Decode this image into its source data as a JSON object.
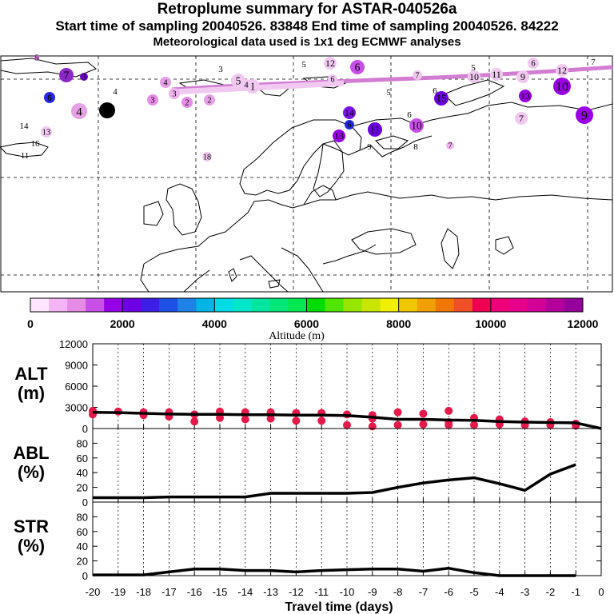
{
  "header": {
    "title": "Retroplume summary for ASTAR-040526a",
    "sampling_line": "Start time of sampling 20040526. 83848     End time of sampling 20040526. 84222",
    "met_line": "Meteorological data used is 1x1 deg ECMWF analyses"
  },
  "colorbar": {
    "label": "Altitude (m)",
    "ticks": [
      "0",
      "2000",
      "4000",
      "6000",
      "8000",
      "10000",
      "12000"
    ],
    "colors": [
      "#ffe6ff",
      "#f5b4f5",
      "#e68ce6",
      "#c850e6",
      "#9600e6",
      "#6e00e6",
      "#3c1ee6",
      "#1e50e6",
      "#1e82e6",
      "#00b4e6",
      "#00dce6",
      "#00e6c8",
      "#00e6a0",
      "#00e678",
      "#00e650",
      "#00dc00",
      "#50e600",
      "#96e600",
      "#c8e600",
      "#f0f000",
      "#f0c800",
      "#f0a000",
      "#f07800",
      "#f05028",
      "#f00050",
      "#f00078",
      "#e6008c",
      "#d20096",
      "#b4009b",
      "#96009b"
    ]
  },
  "map": {
    "trajectory_labels": [
      {
        "t": "7",
        "c": "#8c28c8"
      },
      {
        "t": "3",
        "c": "#6e00c8"
      },
      {
        "t": "6",
        "c": "#2828e6"
      },
      {
        "t": "5",
        "c": "#d264d2"
      },
      {
        "t": "4",
        "c": "#e6a0e6"
      },
      {
        "t": "4",
        "c": "#000000"
      },
      {
        "t": "3",
        "c": "#c850c8"
      },
      {
        "t": "4",
        "c": "#e6a0e6"
      },
      {
        "t": "3",
        "c": "#f0b4f0"
      },
      {
        "t": "3",
        "c": "#e68ce6"
      },
      {
        "t": "2",
        "c": "#e68ce6"
      },
      {
        "t": "2",
        "c": "#e6a0e6"
      },
      {
        "t": "5",
        "c": "#f0c8f0"
      },
      {
        "t": "1",
        "c": "#f0c8f0"
      },
      {
        "t": "4",
        "c": "#000000"
      },
      {
        "t": "4",
        "c": "#f0c8f0"
      },
      {
        "t": "12",
        "c": "#f0c8f0"
      },
      {
        "t": "6",
        "c": "#c850e6"
      },
      {
        "t": "5",
        "c": "#000000"
      },
      {
        "t": "6",
        "c": "#f0c8f0"
      },
      {
        "t": "5",
        "c": "#000000"
      },
      {
        "t": "7",
        "c": "#f0c8f0"
      },
      {
        "t": "10",
        "c": "#f0c8f0"
      },
      {
        "t": "11",
        "c": "#f0c8f0"
      },
      {
        "t": "9",
        "c": "#f0c8f0"
      },
      {
        "t": "5",
        "c": "#f0c8f0"
      },
      {
        "t": "6",
        "c": "#f0c8f0"
      },
      {
        "t": "12",
        "c": "#f0c8f0"
      },
      {
        "t": "7",
        "c": "#000000"
      },
      {
        "t": "10",
        "c": "#9a00e6"
      },
      {
        "t": "6",
        "c": "#1e28e6"
      },
      {
        "t": "15",
        "c": "#6e00e6"
      },
      {
        "t": "13",
        "c": "#9a00e6"
      },
      {
        "t": "6",
        "c": "#000000"
      },
      {
        "t": "14",
        "c": "#7c14e6"
      },
      {
        "t": "6",
        "c": "#1e28e6"
      },
      {
        "t": "11",
        "c": "#6e00e6"
      },
      {
        "t": "13",
        "c": "#9a00e6"
      },
      {
        "t": "9",
        "c": "#000000"
      },
      {
        "t": "10",
        "c": "#c850e6"
      },
      {
        "t": "6",
        "c": "#000000"
      },
      {
        "t": "8",
        "c": "#000000"
      },
      {
        "t": "7",
        "c": "#f0b4f0"
      },
      {
        "t": "7",
        "c": "#f0c8f0"
      },
      {
        "t": "9",
        "c": "#9a00e6"
      },
      {
        "t": "14",
        "c": "#000000"
      },
      {
        "t": "13",
        "c": "#f0c8f0"
      },
      {
        "t": "16",
        "c": "#000000"
      },
      {
        "t": "11",
        "c": "#000000"
      },
      {
        "t": "18",
        "c": "#f0c8f0"
      }
    ]
  },
  "chart_data": [
    {
      "type": "line",
      "ylabel": "ALT\n(m)",
      "yticks": [
        0,
        3000,
        6000,
        9000,
        12000
      ],
      "ylim": [
        0,
        12000
      ],
      "xlim": [
        -20,
        0
      ],
      "series": [
        {
          "name": "mean altitude",
          "x": [
            -20,
            -19,
            -18,
            -17,
            -16,
            -15,
            -14,
            -13,
            -12,
            -11,
            -10,
            -9,
            -8,
            -7,
            -6,
            -5,
            -4,
            -3,
            -2,
            -1,
            0
          ],
          "values": [
            2300,
            2250,
            2150,
            2050,
            2000,
            2000,
            1950,
            1950,
            1900,
            1900,
            1850,
            1600,
            1300,
            1300,
            1200,
            1150,
            1000,
            900,
            850,
            800,
            0
          ]
        },
        {
          "name": "cluster centroids",
          "points": [
            [
              -20,
              2500
            ],
            [
              -20,
              2000
            ],
            [
              -19,
              2400
            ],
            [
              -18,
              2300
            ],
            [
              -18,
              1900
            ],
            [
              -17,
              2300
            ],
            [
              -17,
              1700
            ],
            [
              -16,
              2000
            ],
            [
              -16,
              1000
            ],
            [
              -15,
              2400
            ],
            [
              -15,
              1500
            ],
            [
              -14,
              2300
            ],
            [
              -14,
              1300
            ],
            [
              -13,
              2300
            ],
            [
              -13,
              1400
            ],
            [
              -12,
              2200
            ],
            [
              -12,
              1100
            ],
            [
              -11,
              2200
            ],
            [
              -11,
              1100
            ],
            [
              -10,
              2000
            ],
            [
              -10,
              500
            ],
            [
              -9,
              1900
            ],
            [
              -9,
              1400
            ],
            [
              -9,
              300
            ],
            [
              -8,
              2300
            ],
            [
              -8,
              500
            ],
            [
              -7,
              2100
            ],
            [
              -7,
              600
            ],
            [
              -6,
              2500
            ],
            [
              -6,
              900
            ],
            [
              -6,
              500
            ],
            [
              -5,
              1500
            ],
            [
              -5,
              500
            ],
            [
              -4,
              1300
            ],
            [
              -4,
              600
            ],
            [
              -3,
              1000
            ],
            [
              -3,
              500
            ],
            [
              -2,
              900
            ],
            [
              -2,
              500
            ],
            [
              -1,
              700
            ],
            [
              -1,
              400
            ]
          ]
        }
      ]
    },
    {
      "type": "line",
      "ylabel": "ABL\n(%)",
      "yticks": [
        0,
        20,
        40,
        60,
        80
      ],
      "ylim": [
        0,
        100
      ],
      "xlim": [
        -20,
        0
      ],
      "series": [
        {
          "name": "ABL fraction",
          "x": [
            -20,
            -19,
            -18,
            -17,
            -16,
            -15,
            -14,
            -13,
            -12,
            -11,
            -10,
            -9,
            -8,
            -7,
            -6,
            -5,
            -4,
            -3,
            -2,
            -1
          ],
          "values": [
            6,
            6,
            6,
            7,
            7,
            7,
            7,
            12,
            12,
            12,
            12,
            13,
            20,
            26,
            30,
            33,
            25,
            16,
            38,
            51
          ]
        }
      ]
    },
    {
      "type": "line",
      "ylabel": "STR\n(%)",
      "yticks": [
        0,
        20,
        40,
        60,
        80
      ],
      "ylim": [
        0,
        100
      ],
      "xlim": [
        -20,
        0
      ],
      "xlabel": "Travel time (days)",
      "xticks": [
        -20,
        -19,
        -18,
        -17,
        -16,
        -15,
        -14,
        -13,
        -12,
        -11,
        -10,
        -9,
        -8,
        -7,
        -6,
        -5,
        -4,
        -3,
        -2,
        -1,
        0
      ],
      "series": [
        {
          "name": "STR fraction",
          "x": [
            -20,
            -19,
            -18,
            -17,
            -16,
            -15,
            -14,
            -13,
            -12,
            -11,
            -10,
            -9,
            -8,
            -7,
            -6,
            -5,
            -4,
            -3,
            -2,
            -1
          ],
          "values": [
            1,
            1,
            1,
            5,
            9,
            9,
            7,
            7,
            5,
            7,
            8,
            9,
            9,
            6,
            10,
            4,
            0,
            0,
            0,
            0
          ]
        }
      ]
    }
  ]
}
